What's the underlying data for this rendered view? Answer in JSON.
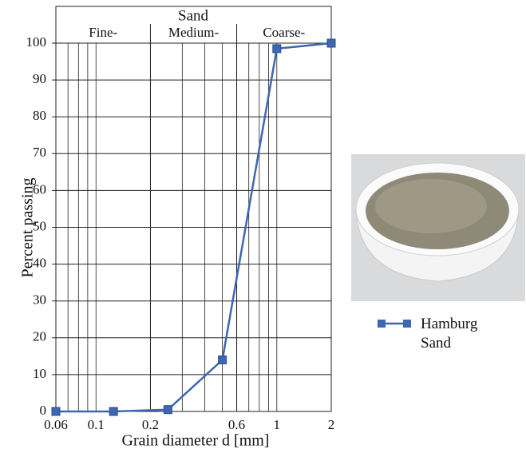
{
  "chart_data": {
    "type": "line",
    "ylabel": "Percent passing",
    "xlabel": "Grain diameter d [mm]",
    "group_label": "Sand",
    "zones": [
      "Fine-",
      "Medium-",
      "Coarse-"
    ],
    "zone_bounds": [
      0.2,
      0.6
    ],
    "log_x": true,
    "grid": true,
    "xlim": [
      0.06,
      2
    ],
    "xticks": [
      0.06,
      0.1,
      0.2,
      0.6,
      1,
      2
    ],
    "x_minor_ticks": [
      0.07,
      0.08,
      0.09,
      0.3,
      0.4,
      0.5,
      0.7,
      0.8,
      0.9
    ],
    "ylim": [
      0,
      100
    ],
    "yticks": [
      0,
      10,
      20,
      30,
      40,
      50,
      60,
      70,
      80,
      90,
      100
    ],
    "x": [
      0.06,
      0.125,
      0.25,
      0.5,
      1,
      2
    ],
    "series": [
      {
        "name": "Hamburg Sand",
        "color": "#3f66b3",
        "values": [
          0,
          0,
          0.5,
          14,
          98.5,
          100
        ]
      }
    ]
  }
}
